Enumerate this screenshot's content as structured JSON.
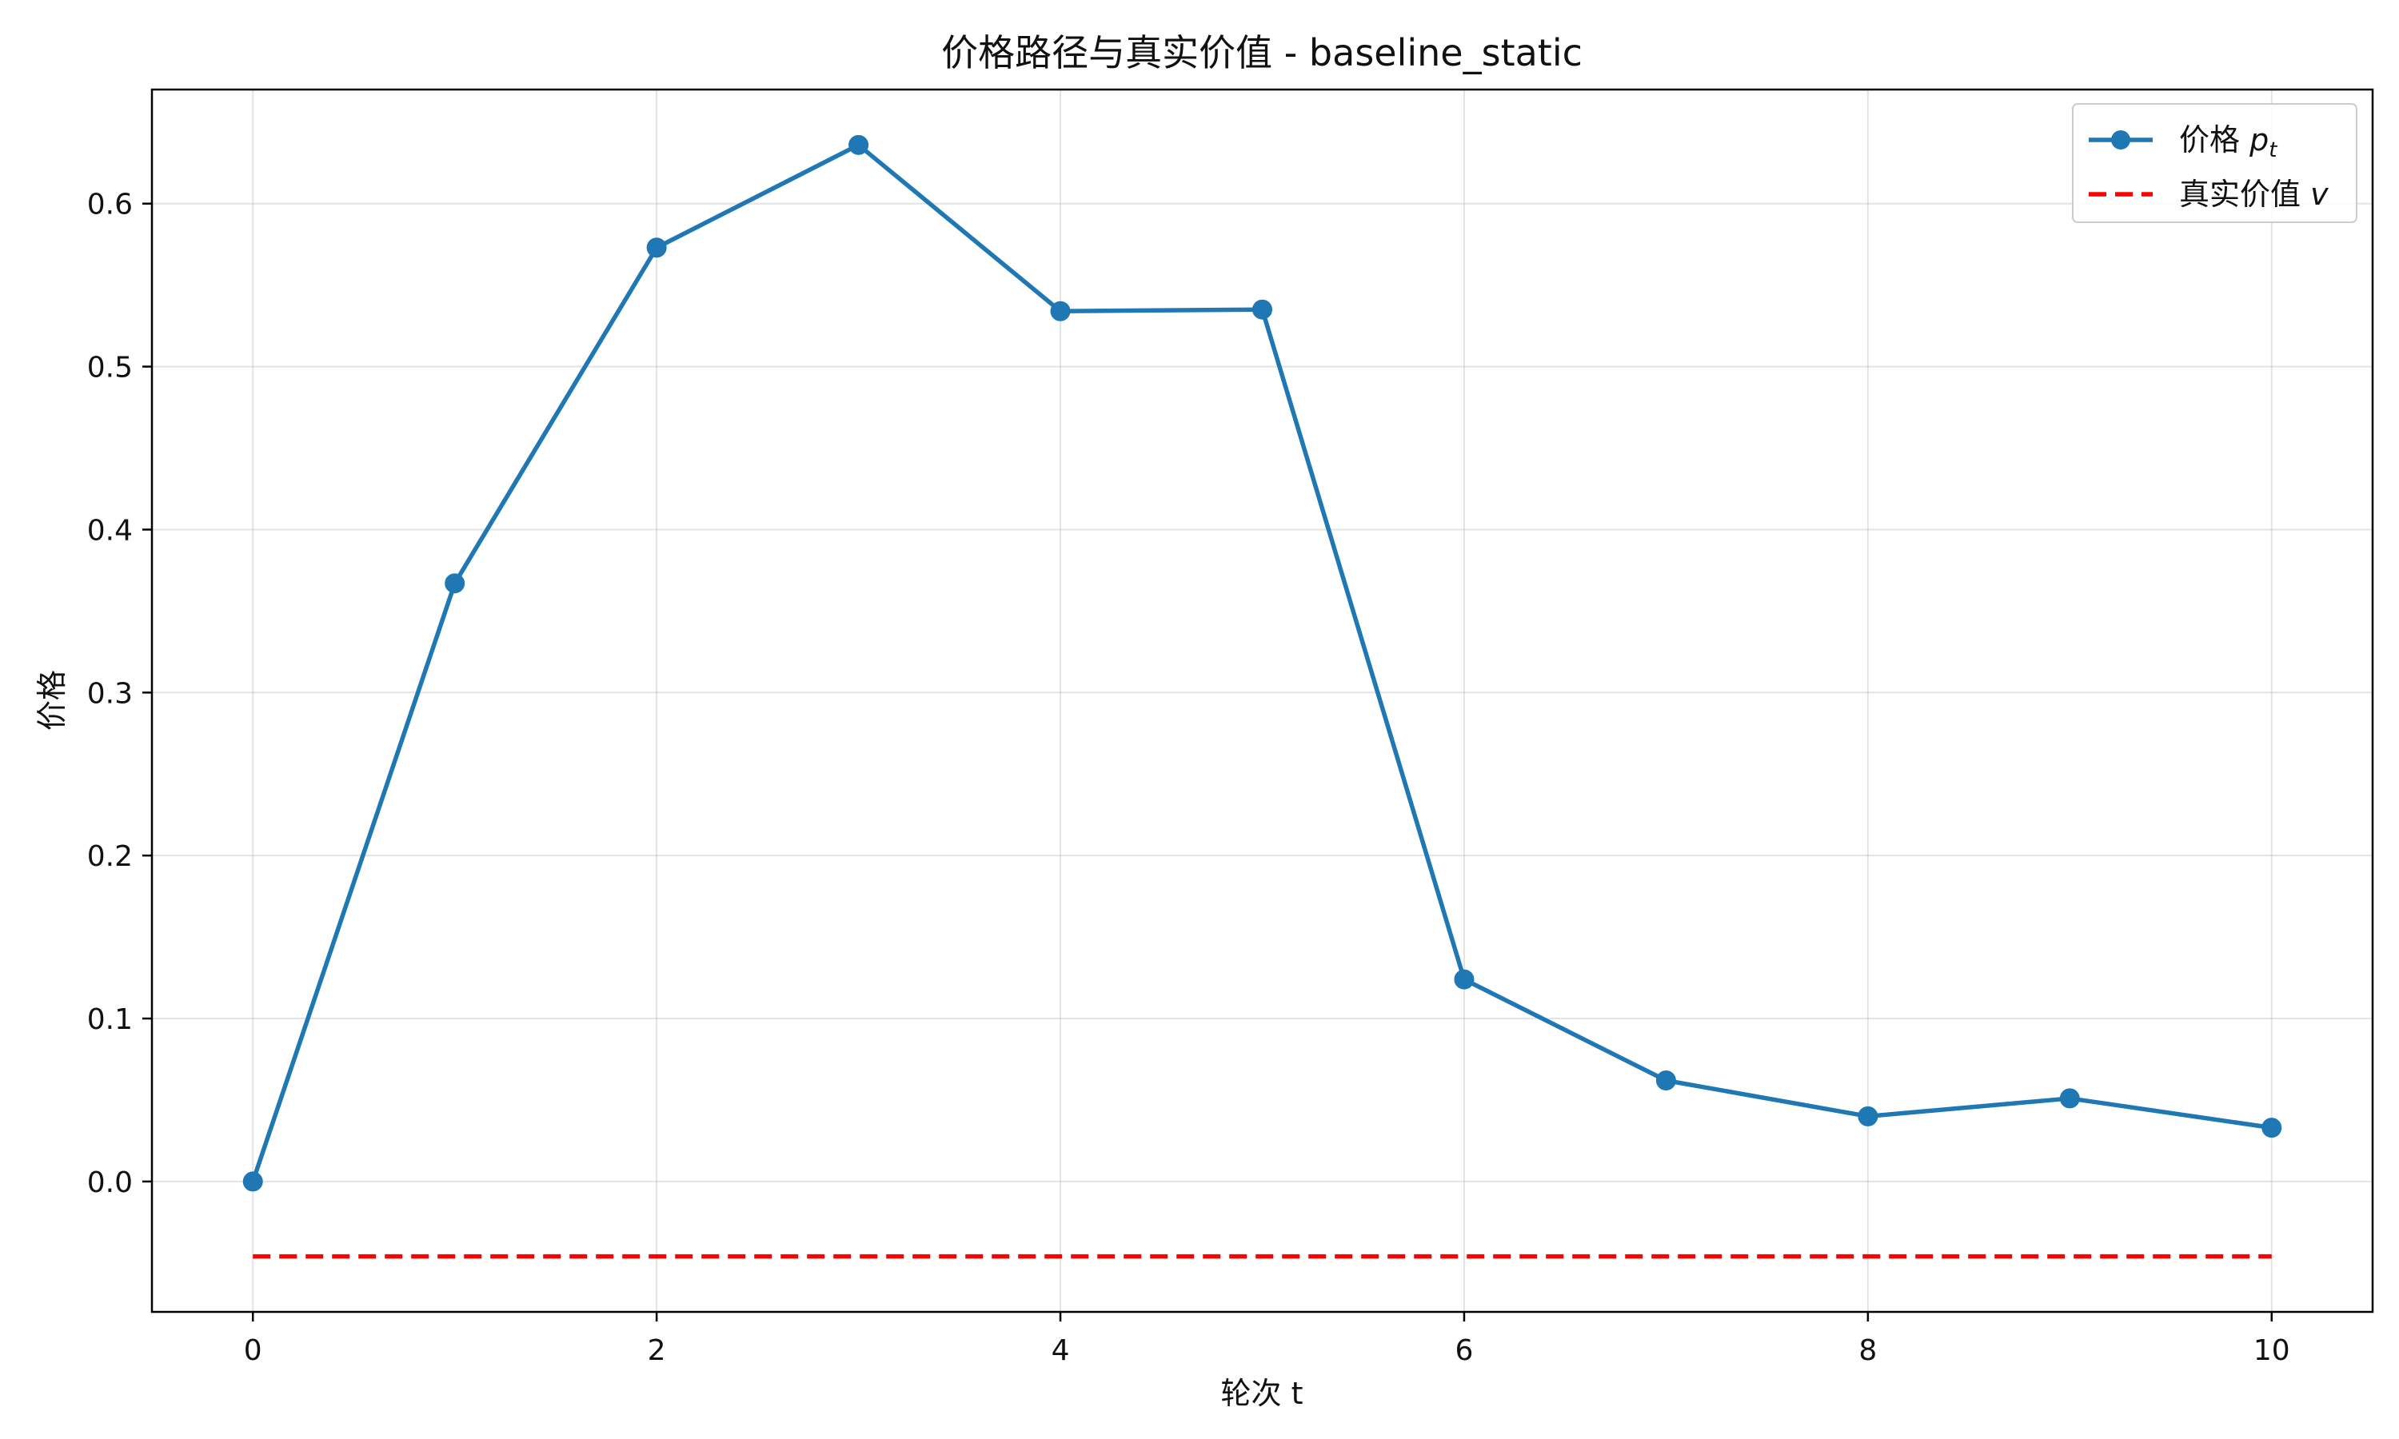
{
  "chart_data": {
    "type": "line",
    "title": "价格路径与真实价值 - baseline_static",
    "xlabel": "轮次 t",
    "ylabel": "价格",
    "xlim": [
      -0.5,
      10.5
    ],
    "ylim": [
      -0.08,
      0.67
    ],
    "xticks": [
      0,
      2,
      4,
      6,
      8,
      10
    ],
    "xtick_labels": [
      "0",
      "2",
      "4",
      "6",
      "8",
      "10"
    ],
    "yticks": [
      0.0,
      0.1,
      0.2,
      0.3,
      0.4,
      0.5,
      0.6
    ],
    "ytick_labels": [
      "0.0",
      "0.1",
      "0.2",
      "0.3",
      "0.4",
      "0.5",
      "0.6"
    ],
    "grid": true,
    "legend_position": "top-right",
    "series": [
      {
        "name": "价格 p_t",
        "legend_main": "价格 ",
        "legend_var": "p",
        "legend_sub": "t",
        "style": "solid-markers",
        "color": "#1f77b4",
        "x": [
          0,
          1,
          2,
          3,
          4,
          5,
          6,
          7,
          8,
          9,
          10
        ],
        "values": [
          0.0,
          0.367,
          0.573,
          0.636,
          0.534,
          0.535,
          0.124,
          0.062,
          0.04,
          0.051,
          0.033
        ]
      },
      {
        "name": "真实价值 v",
        "legend_main": "真实价值 ",
        "legend_var": "v",
        "legend_sub": "",
        "style": "dashed",
        "color": "#ff0000",
        "x": [
          0,
          10
        ],
        "values": [
          -0.046,
          -0.046
        ]
      }
    ]
  }
}
